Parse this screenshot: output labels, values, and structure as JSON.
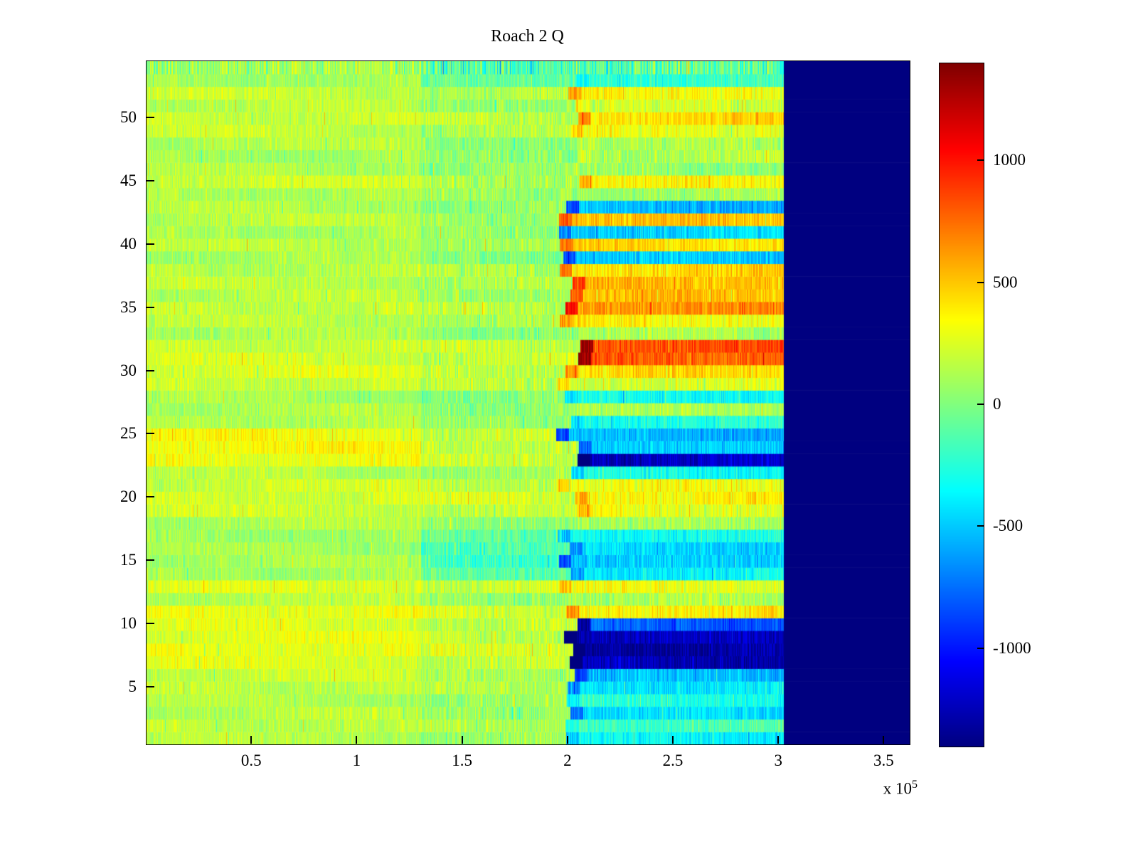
{
  "chart_data": {
    "type": "heatmap",
    "title": "Roach 2 Q",
    "xlabel": "",
    "ylabel": "",
    "colormap": "jet",
    "clim": [
      -1400,
      1400
    ],
    "xlim": [
      0,
      362000
    ],
    "n_rows": 54,
    "x_exponent": {
      "base": "x 10",
      "exp": "5"
    },
    "x_ticks": [
      {
        "value": 50000,
        "label": "0.5"
      },
      {
        "value": 100000,
        "label": "1"
      },
      {
        "value": 150000,
        "label": "1.5"
      },
      {
        "value": 200000,
        "label": "2"
      },
      {
        "value": 250000,
        "label": "2.5"
      },
      {
        "value": 300000,
        "label": "3"
      },
      {
        "value": 350000,
        "label": "3.5"
      }
    ],
    "y_ticks": [
      5,
      10,
      15,
      20,
      25,
      30,
      35,
      40,
      45,
      50
    ],
    "colorbar_ticks": [
      {
        "value": 1000,
        "label": "1000"
      },
      {
        "value": 500,
        "label": "500"
      },
      {
        "value": 0,
        "label": "0"
      },
      {
        "value": -500,
        "label": "-500"
      },
      {
        "value": -1000,
        "label": "-1000"
      }
    ],
    "segments_x": [
      0,
      130000,
      200000,
      302000
    ],
    "gap_value": -1400,
    "boundary_jitter": 6000,
    "noise_amplitude": {
      "left": 110,
      "mid": 150,
      "right": 140
    },
    "rows_order": "bottom-to-top",
    "rows": [
      [
        150,
        80,
        -350
      ],
      [
        180,
        120,
        -150
      ],
      [
        150,
        100,
        -450
      ],
      [
        130,
        80,
        -250
      ],
      [
        180,
        120,
        -400
      ],
      [
        200,
        150,
        -550
      ],
      [
        260,
        180,
        -1250
      ],
      [
        300,
        220,
        -1300
      ],
      [
        280,
        200,
        -1250
      ],
      [
        260,
        180,
        -800
      ],
      [
        300,
        220,
        400
      ],
      [
        150,
        100,
        100
      ],
      [
        260,
        200,
        300
      ],
      [
        110,
        -120,
        -350
      ],
      [
        120,
        -150,
        -500
      ],
      [
        100,
        -150,
        -450
      ],
      [
        90,
        -100,
        -300
      ],
      [
        130,
        60,
        80
      ],
      [
        210,
        180,
        300
      ],
      [
        230,
        230,
        380
      ],
      [
        210,
        200,
        300
      ],
      [
        150,
        80,
        -300
      ],
      [
        310,
        180,
        -1200
      ],
      [
        350,
        200,
        -500
      ],
      [
        330,
        190,
        -550
      ],
      [
        150,
        60,
        -250
      ],
      [
        130,
        60,
        100
      ],
      [
        110,
        30,
        -300
      ],
      [
        210,
        160,
        250
      ],
      [
        260,
        200,
        420
      ],
      [
        230,
        200,
        800
      ],
      [
        210,
        180,
        850
      ],
      [
        130,
        60,
        100
      ],
      [
        160,
        110,
        350
      ],
      [
        190,
        140,
        650
      ],
      [
        160,
        110,
        500
      ],
      [
        170,
        120,
        550
      ],
      [
        160,
        110,
        450
      ],
      [
        110,
        30,
        -500
      ],
      [
        160,
        100,
        450
      ],
      [
        130,
        40,
        -450
      ],
      [
        160,
        100,
        500
      ],
      [
        140,
        40,
        -550
      ],
      [
        130,
        50,
        100
      ],
      [
        210,
        150,
        350
      ],
      [
        130,
        40,
        60
      ],
      [
        110,
        30,
        150
      ],
      [
        140,
        60,
        100
      ],
      [
        190,
        130,
        300
      ],
      [
        210,
        150,
        450
      ],
      [
        160,
        90,
        200
      ],
      [
        190,
        130,
        350
      ],
      [
        110,
        -80,
        -200
      ],
      [
        90,
        -130,
        -120
      ]
    ]
  }
}
